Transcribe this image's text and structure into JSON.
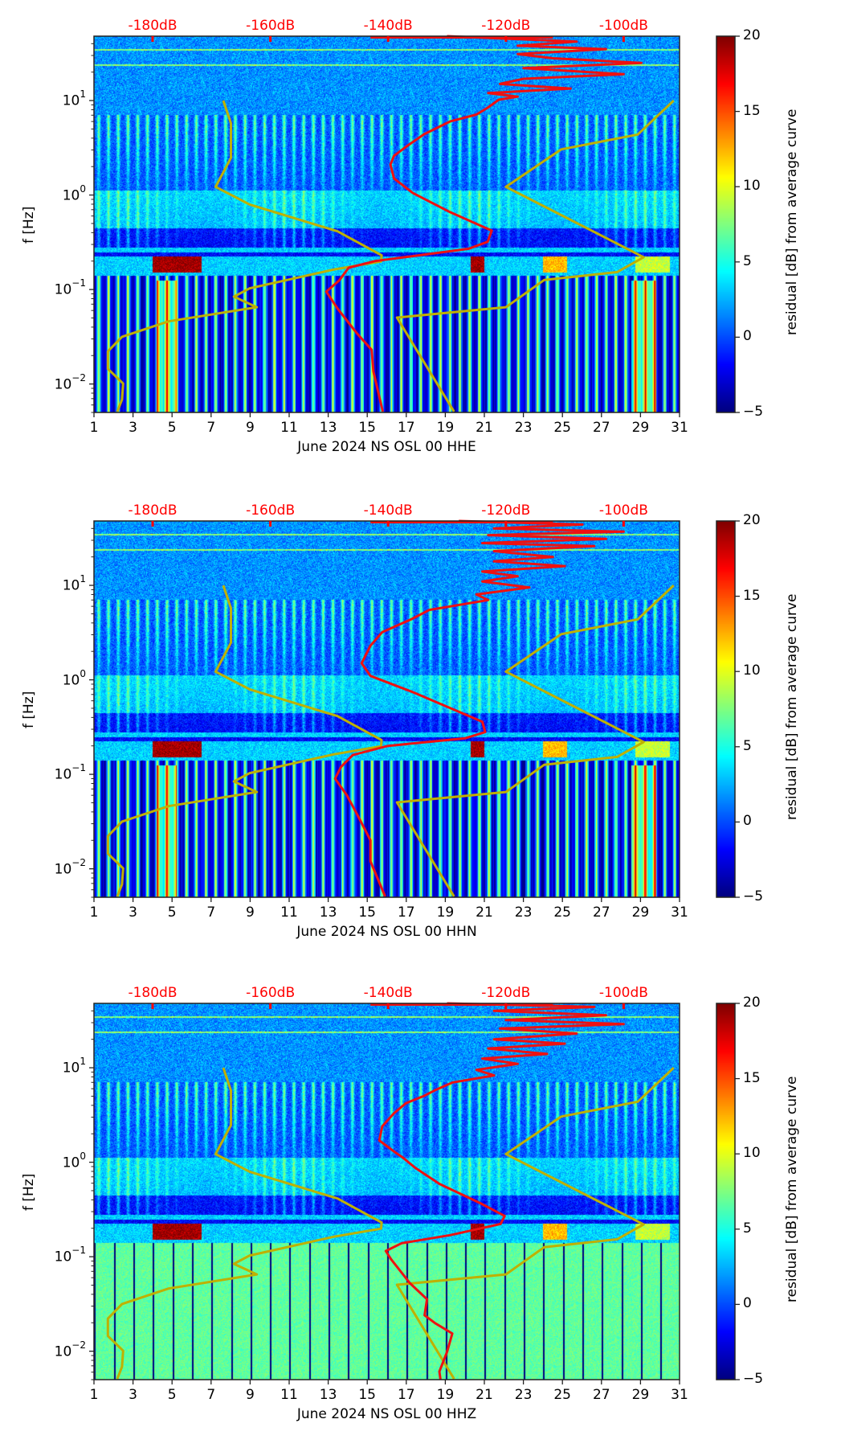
{
  "chart_data": [
    {
      "type": "heatmap",
      "title": "",
      "xlabel": "June 2024 NS OSL 00 HHE",
      "ylabel": "f [Hz]",
      "xlim": [
        1,
        31
      ],
      "ylim_hz": [
        0.005,
        48
      ],
      "yscale": "log",
      "xticks": [
        "1",
        "3",
        "5",
        "7",
        "9",
        "11",
        "13",
        "15",
        "17",
        "19",
        "21",
        "23",
        "25",
        "27",
        "29",
        "31"
      ],
      "yticks": [
        {
          "base": "10",
          "exp": "1"
        },
        {
          "base": "10",
          "exp": "0"
        },
        {
          "base": "10",
          "exp": "−1"
        },
        {
          "base": "10",
          "exp": "−2"
        }
      ],
      "top_axis": {
        "ticks": [
          "-180dB",
          "-160dB",
          "-140dB",
          "-120dB",
          "-100dB"
        ],
        "values": [
          -180,
          -160,
          -140,
          -120,
          -100
        ],
        "color": "#ff0000"
      },
      "colorbar": {
        "label": "residual [dB] from average curve",
        "range": [
          -5,
          20
        ],
        "ticks": [
          "20",
          "15",
          "10",
          "5",
          "0",
          "−5"
        ],
        "colormap": "jet"
      },
      "series": [
        {
          "name": "NLNM",
          "color": "#bfb000",
          "points": [
            [
              -168.0,
              10
            ],
            [
              -166.7,
              5.75
            ],
            [
              -166.7,
              2.47
            ],
            [
              -169.3,
              1.22
            ],
            [
              -163.5,
              0.794
            ],
            [
              -148.6,
              0.413
            ],
            [
              -141.1,
              0.23
            ],
            [
              -141.2,
              0.198
            ],
            [
              -149.2,
              0.163
            ],
            [
              -163.5,
              0.103
            ],
            [
              -166.2,
              0.084
            ],
            [
              -162.3,
              0.065
            ],
            [
              -177.3,
              0.046
            ],
            [
              -185.2,
              0.0316
            ],
            [
              -187.6,
              0.0221
            ],
            [
              -187.6,
              0.0145
            ],
            [
              -185.0,
              0.0101
            ],
            [
              -185.2,
              0.00686
            ],
            [
              -186.0,
              0.0051
            ]
          ]
        },
        {
          "name": "NHNM",
          "color": "#bfb000",
          "points": [
            [
              -91.5,
              10
            ],
            [
              -97.6,
              4.37
            ],
            [
              -110.6,
              3.04
            ],
            [
              -120.0,
              1.22
            ],
            [
              -96.6,
              0.22
            ],
            [
              -101.1,
              0.153
            ],
            [
              -113.5,
              0.126
            ],
            [
              -120.0,
              0.065
            ],
            [
              -138.5,
              0.0505
            ],
            [
              -128.8,
              0.0051
            ]
          ]
        },
        {
          "name": "average PSD",
          "color": "#ee1111",
          "points": [
            [
              -130,
              48
            ],
            [
              -108,
              42
            ],
            [
              -118,
              38
            ],
            [
              -103,
              35
            ],
            [
              -118,
              31
            ],
            [
              -112,
              28
            ],
            [
              -97,
              25
            ],
            [
              -117,
              22
            ],
            [
              -100,
              19
            ],
            [
              -117,
              17
            ],
            [
              -121,
              15
            ],
            [
              -109,
              13.4
            ],
            [
              -123,
              12
            ],
            [
              -118,
              11
            ],
            [
              -121.2,
              10.2
            ],
            [
              -123.1,
              8.4
            ],
            [
              -125,
              7.1
            ],
            [
              -129.5,
              6.0
            ],
            [
              -133.9,
              4.4
            ],
            [
              -136.5,
              3.4
            ],
            [
              -139.0,
              2.6
            ],
            [
              -139.6,
              2.1
            ],
            [
              -139.0,
              1.5
            ],
            [
              -135.8,
              1.05
            ],
            [
              -129.5,
              0.66
            ],
            [
              -122.4,
              0.42
            ],
            [
              -123.1,
              0.32
            ],
            [
              -126.3,
              0.27
            ],
            [
              -142.2,
              0.2
            ],
            [
              -146.7,
              0.17
            ],
            [
              -148.3,
              0.125
            ],
            [
              -150.5,
              0.095
            ],
            [
              -148.6,
              0.063
            ],
            [
              -145.4,
              0.035
            ],
            [
              -142.8,
              0.023
            ],
            [
              -142.5,
              0.0135
            ],
            [
              -140.9,
              0.0051
            ]
          ]
        }
      ]
    },
    {
      "type": "heatmap",
      "title": "",
      "xlabel": "June 2024 NS OSL 00 HHN",
      "ylabel": "f [Hz]",
      "xlim": [
        1,
        31
      ],
      "ylim_hz": [
        0.005,
        48
      ],
      "yscale": "log",
      "xticks": [
        "1",
        "3",
        "5",
        "7",
        "9",
        "11",
        "13",
        "15",
        "17",
        "19",
        "21",
        "23",
        "25",
        "27",
        "29",
        "31"
      ],
      "yticks": [
        {
          "base": "10",
          "exp": "1"
        },
        {
          "base": "10",
          "exp": "0"
        },
        {
          "base": "10",
          "exp": "−1"
        },
        {
          "base": "10",
          "exp": "−2"
        }
      ],
      "top_axis": {
        "ticks": [
          "-180dB",
          "-160dB",
          "-140dB",
          "-120dB",
          "-100dB"
        ],
        "values": [
          -180,
          -160,
          -140,
          -120,
          -100
        ],
        "color": "#ff0000"
      },
      "colorbar": {
        "label": "residual [dB] from average curve",
        "range": [
          -5,
          20
        ],
        "ticks": [
          "20",
          "15",
          "10",
          "5",
          "0",
          "−5"
        ],
        "colormap": "jet"
      },
      "series": [
        {
          "name": "NLNM",
          "color": "#bfb000",
          "points": [
            [
              -168.0,
              10
            ],
            [
              -166.7,
              5.75
            ],
            [
              -166.7,
              2.47
            ],
            [
              -169.3,
              1.22
            ],
            [
              -163.5,
              0.794
            ],
            [
              -148.6,
              0.413
            ],
            [
              -141.1,
              0.23
            ],
            [
              -141.2,
              0.198
            ],
            [
              -149.2,
              0.163
            ],
            [
              -163.5,
              0.103
            ],
            [
              -166.2,
              0.084
            ],
            [
              -162.3,
              0.065
            ],
            [
              -177.3,
              0.046
            ],
            [
              -185.2,
              0.0316
            ],
            [
              -187.6,
              0.0221
            ],
            [
              -187.6,
              0.0145
            ],
            [
              -185.0,
              0.0101
            ],
            [
              -185.2,
              0.00686
            ],
            [
              -186.0,
              0.0051
            ]
          ]
        },
        {
          "name": "NHNM",
          "color": "#bfb000",
          "points": [
            [
              -91.5,
              10
            ],
            [
              -97.6,
              4.37
            ],
            [
              -110.6,
              3.04
            ],
            [
              -120.0,
              1.22
            ],
            [
              -96.6,
              0.22
            ],
            [
              -101.1,
              0.153
            ],
            [
              -113.5,
              0.126
            ],
            [
              -120.0,
              0.065
            ],
            [
              -138.5,
              0.0505
            ],
            [
              -128.8,
              0.0051
            ]
          ]
        },
        {
          "name": "average PSD",
          "color": "#ee1111",
          "points": [
            [
              -128,
              48
            ],
            [
              -107,
              44
            ],
            [
              -122,
              40
            ],
            [
              -100,
              37
            ],
            [
              -123,
              34
            ],
            [
              -103,
              31
            ],
            [
              -124,
              28
            ],
            [
              -105,
              26
            ],
            [
              -122,
              23
            ],
            [
              -112,
              20
            ],
            [
              -122,
              18
            ],
            [
              -110,
              16
            ],
            [
              -124,
              14
            ],
            [
              -118,
              12.5
            ],
            [
              -124,
              11
            ],
            [
              -116,
              9.5
            ],
            [
              -125,
              8
            ],
            [
              -123,
              7
            ],
            [
              -133,
              5.5
            ],
            [
              -136,
              4.4
            ],
            [
              -141,
              3.2
            ],
            [
              -143,
              2.3
            ],
            [
              -144.5,
              1.5
            ],
            [
              -143,
              1.1
            ],
            [
              -136,
              0.75
            ],
            [
              -130,
              0.52
            ],
            [
              -124,
              0.36
            ],
            [
              -123.5,
              0.28
            ],
            [
              -127,
              0.24
            ],
            [
              -140,
              0.2
            ],
            [
              -146,
              0.16
            ],
            [
              -148,
              0.12
            ],
            [
              -149,
              0.09
            ],
            [
              -147,
              0.06
            ],
            [
              -145,
              0.035
            ],
            [
              -143,
              0.02
            ],
            [
              -143,
              0.012
            ],
            [
              -140.5,
              0.0051
            ]
          ]
        }
      ]
    },
    {
      "type": "heatmap",
      "title": "",
      "xlabel": "June 2024 NS OSL 00 HHZ",
      "ylabel": "f [Hz]",
      "xlim": [
        1,
        31
      ],
      "ylim_hz": [
        0.005,
        48
      ],
      "yscale": "log",
      "xticks": [
        "1",
        "3",
        "5",
        "7",
        "9",
        "11",
        "13",
        "15",
        "17",
        "19",
        "21",
        "23",
        "25",
        "27",
        "29",
        "31"
      ],
      "yticks": [
        {
          "base": "10",
          "exp": "1"
        },
        {
          "base": "10",
          "exp": "0"
        },
        {
          "base": "10",
          "exp": "−1"
        },
        {
          "base": "10",
          "exp": "−2"
        }
      ],
      "top_axis": {
        "ticks": [
          "-180dB",
          "-160dB",
          "-140dB",
          "-120dB",
          "-100dB"
        ],
        "values": [
          -180,
          -160,
          -140,
          -120,
          -100
        ],
        "color": "#ff0000"
      },
      "colorbar": {
        "label": "residual [dB] from average curve",
        "range": [
          -5,
          20
        ],
        "ticks": [
          "20",
          "15",
          "10",
          "5",
          "0",
          "−5"
        ],
        "colormap": "jet"
      },
      "series": [
        {
          "name": "NLNM",
          "color": "#bfb000",
          "points": [
            [
              -168.0,
              10
            ],
            [
              -166.7,
              5.75
            ],
            [
              -166.7,
              2.47
            ],
            [
              -169.3,
              1.22
            ],
            [
              -163.5,
              0.794
            ],
            [
              -148.6,
              0.413
            ],
            [
              -141.1,
              0.23
            ],
            [
              -141.2,
              0.198
            ],
            [
              -149.2,
              0.163
            ],
            [
              -163.5,
              0.103
            ],
            [
              -166.2,
              0.084
            ],
            [
              -162.3,
              0.065
            ],
            [
              -177.3,
              0.046
            ],
            [
              -185.2,
              0.0316
            ],
            [
              -187.6,
              0.0221
            ],
            [
              -187.6,
              0.0145
            ],
            [
              -185.0,
              0.0101
            ],
            [
              -185.2,
              0.00686
            ],
            [
              -186.0,
              0.0051
            ]
          ]
        },
        {
          "name": "NHNM",
          "color": "#bfb000",
          "points": [
            [
              -91.5,
              10
            ],
            [
              -97.6,
              4.37
            ],
            [
              -110.6,
              3.04
            ],
            [
              -120.0,
              1.22
            ],
            [
              -96.6,
              0.22
            ],
            [
              -101.1,
              0.153
            ],
            [
              -113.5,
              0.126
            ],
            [
              -120.0,
              0.065
            ],
            [
              -138.5,
              0.0505
            ],
            [
              -128.8,
              0.0051
            ]
          ]
        },
        {
          "name": "average PSD",
          "color": "#ee1111",
          "points": [
            [
              -130,
              48
            ],
            [
              -105,
              44
            ],
            [
              -122,
              40
            ],
            [
              -103,
              36
            ],
            [
              -120,
              32
            ],
            [
              -100,
              29
            ],
            [
              -121,
              26
            ],
            [
              -108,
              23
            ],
            [
              -122,
              20
            ],
            [
              -110,
              18
            ],
            [
              -123,
              16
            ],
            [
              -113,
              14
            ],
            [
              -124,
              12.5
            ],
            [
              -118,
              11
            ],
            [
              -125,
              9.5
            ],
            [
              -122,
              8.3
            ],
            [
              -129,
              7.0
            ],
            [
              -132,
              5.8
            ],
            [
              -134,
              5.0
            ],
            [
              -137,
              4.2
            ],
            [
              -139,
              3.3
            ],
            [
              -141,
              2.4
            ],
            [
              -141.5,
              1.7
            ],
            [
              -139,
              1.3
            ],
            [
              -137.5,
              1.12
            ],
            [
              -135.4,
              0.873
            ],
            [
              -131.3,
              0.59
            ],
            [
              -124.1,
              0.362
            ],
            [
              -120.2,
              0.27
            ],
            [
              -120.9,
              0.222
            ],
            [
              -129.5,
              0.169
            ],
            [
              -137.7,
              0.139
            ],
            [
              -140.4,
              0.115
            ],
            [
              -139.5,
              0.094
            ],
            [
              -136.3,
              0.0525
            ],
            [
              -133.4,
              0.0355
            ],
            [
              -133.8,
              0.024
            ],
            [
              -132.0,
              0.0198
            ],
            [
              -129.1,
              0.0154
            ],
            [
              -130.0,
              0.0098
            ],
            [
              -131.3,
              0.0061
            ],
            [
              -131.1,
              0.005
            ]
          ]
        }
      ]
    }
  ]
}
